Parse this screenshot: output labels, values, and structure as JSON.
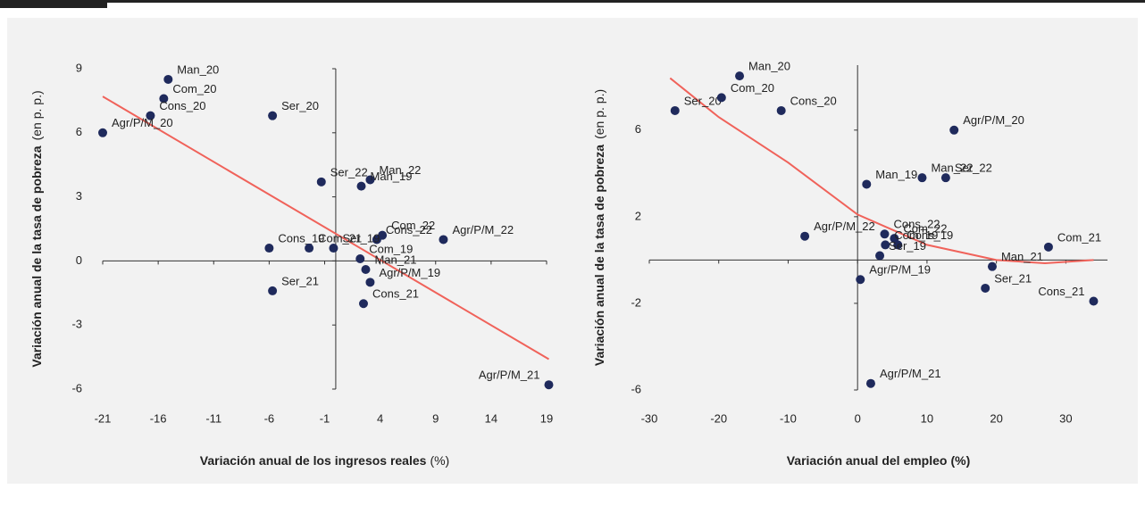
{
  "chart_data": [
    {
      "type": "scatter",
      "x_label": "Variación anual de los ingresos reales",
      "x_label_unit": "(%)",
      "y_label": "Variación anual de la tasa de pobreza",
      "y_label_unit": "(en p. p.)",
      "xlim": [
        -21,
        19
      ],
      "xticks": [
        -21,
        -16,
        -11,
        -6,
        -1,
        4,
        9,
        14,
        19
      ],
      "ylim": [
        -6,
        9
      ],
      "yticks": [
        -6,
        -3,
        0,
        3,
        6,
        9
      ],
      "point_color": "#1f2a5c",
      "trend_color": "#f0625a",
      "labels": [
        "Man_20",
        "Com_20",
        "Cons_20",
        "Agr/P/M_20",
        "Ser_20",
        "Ser_22",
        "Man_22",
        "Man_19",
        "Com_22",
        "Cons_22",
        "Agr/P/M_22",
        "Cons_19",
        "Com_21",
        "Ser_19",
        "Com_19",
        "Man_21",
        "Agr/P/M_19",
        "Cons_21",
        "Ser_21",
        "Agr/P/M_21"
      ],
      "x": [
        -15.1,
        -15.5,
        -16.7,
        -21,
        -5.7,
        -1.3,
        3.1,
        2.3,
        4.2,
        3.7,
        9.7,
        -6.0,
        -2.4,
        -0.2,
        2.2,
        2.7,
        3.1,
        2.5,
        -5.7,
        19.2
      ],
      "y": [
        8.5,
        7.6,
        6.8,
        6.0,
        6.8,
        3.7,
        3.8,
        3.5,
        1.2,
        1.0,
        1.0,
        0.6,
        0.6,
        0.6,
        0.1,
        -0.4,
        -1.0,
        -2.0,
        -1.4,
        -5.8
      ],
      "trend": {
        "x": [
          -21,
          19.2
        ],
        "y": [
          7.7,
          -4.6
        ]
      }
    },
    {
      "type": "scatter",
      "x_label": "Variación anual del empleo",
      "x_label_unit": "(%)",
      "y_label": "Variación anual de la tasa de pobreza",
      "y_label_unit": "(en p. p.)",
      "xlim": [
        -30,
        36
      ],
      "xticks": [
        -30,
        -20,
        -10,
        0,
        10,
        20,
        30
      ],
      "ylim": [
        -6,
        9
      ],
      "yticks": [
        -6,
        -2,
        2,
        6
      ],
      "point_color": "#1f2a5c",
      "trend_color": "#f0625a",
      "labels": [
        "Ser_20",
        "Man_20",
        "Com_20",
        "Cons_20",
        "Agr/P/M_20",
        "Man_19",
        "Man_22",
        "Ser_22",
        "Agr/P/M_22",
        "Cons_22",
        "Com_22",
        "Cons_19",
        "Com_19",
        "Ser_19",
        "Com_21",
        "Man_21",
        "Ser_21",
        "Agr/P/M_19",
        "Cons_21",
        "Agr/P/M_21"
      ],
      "x": [
        -26.3,
        -17.0,
        -19.6,
        -11.0,
        13.9,
        1.3,
        9.3,
        12.7,
        -7.6,
        3.9,
        5.3,
        5.8,
        4.0,
        3.2,
        27.5,
        19.4,
        18.4,
        0.4,
        34.0,
        1.9
      ],
      "y": [
        6.9,
        8.5,
        7.5,
        6.9,
        6.0,
        3.5,
        3.8,
        3.8,
        1.1,
        1.2,
        1.0,
        0.7,
        0.7,
        0.2,
        0.6,
        -0.3,
        -1.3,
        -0.9,
        -1.9,
        -5.7
      ],
      "trend": {
        "x": [
          -27,
          -20,
          -10,
          0,
          10,
          20,
          27,
          34
        ],
        "y": [
          8.4,
          6.6,
          4.5,
          2.1,
          0.7,
          0,
          -0.15,
          0
        ]
      }
    }
  ]
}
